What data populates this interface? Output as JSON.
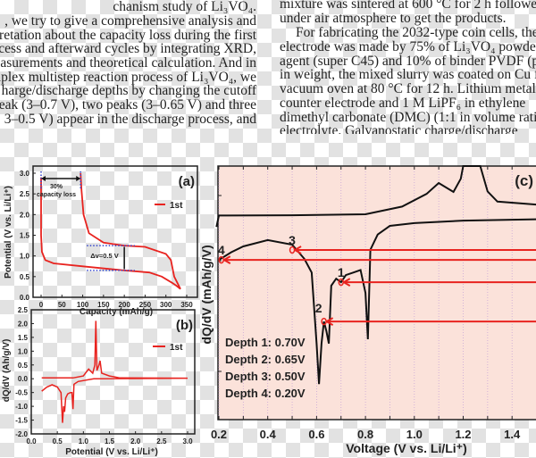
{
  "text": {
    "left_lines": [
      "chanism study of Li₃VO₄.",
      ", we try to give a comprehensive analysis and",
      "rpretation about the capacity loss during the first",
      "e process and afterward cycles by integrating XRD,",
      "measurements and theoretical calculation. And in",
      "nplex multistep reaction process of Li₃VO₄, we",
      "harge/discharge depths by changing the cutoff",
      "e peak (3–0.7 V), two peaks (3–0.65 V) and three",
      ", 3–0.5 V) appear in the discharge process, and"
    ],
    "right_lines": [
      "mixture was sintered at 600 °C for 2 h followed b",
      "under air atmosphere to get the products.",
      "For fabricating the 2032-type coin cells, the Li",
      "electrode was made by 75% of Li₃VO₄ powder, 15",
      "agent (super C45) and 10% of binder PVDF (polyviny",
      "in weight, the mixed slurry was coated on Cu foil a",
      "vacuum oven at 80 °C for 12 h. Lithium metal foils",
      "counter electrode and 1 M LiPF₆ in ethylene",
      "dimethyl carbonate (DMC) (1:1 in volume ratio)",
      "electrolyte.     Galvanostatic     charge/discharge"
    ]
  },
  "chart_data": [
    {
      "panel": "(a)",
      "type": "line",
      "xlabel": "Capacity (mAh/g)",
      "ylabel": "Potential (V vs. Li/Li⁺)",
      "xlim": [
        0,
        350
      ],
      "ylim": [
        0,
        3.0
      ],
      "xticks": [
        "0",
        "50",
        "100",
        "150",
        "200",
        "250",
        "300",
        "350"
      ],
      "yticks": [
        "0.0",
        "0.5",
        "1.0",
        "1.5",
        "2.0",
        "2.5",
        "3.0"
      ],
      "legend": "1st",
      "legend_position": "right",
      "annotations": [
        "30%",
        "capacity loss",
        "Δv=0.5 V"
      ],
      "color": "#e8231f",
      "series": [
        {
          "name": "1st",
          "x": [
            0,
            0,
            2,
            10,
            30,
            100,
            200,
            260,
            290,
            315,
            325,
            335,
            320,
            312,
            300,
            250,
            200,
            150,
            115,
            102,
            97,
            95
          ],
          "y": [
            2.9,
            1.5,
            1.1,
            0.9,
            0.82,
            0.75,
            0.65,
            0.6,
            0.5,
            0.35,
            0.28,
            0.2,
            0.5,
            0.9,
            1.05,
            1.22,
            1.25,
            1.32,
            1.55,
            2.0,
            2.6,
            3.0
          ]
        }
      ]
    },
    {
      "panel": "(b)",
      "type": "line",
      "xlabel": "Potential (V vs. Li/Li⁺)",
      "ylabel": "dQ/dV (Ah/g/V)",
      "xlim": [
        0,
        3.0
      ],
      "ylim": [
        -2.0,
        2.5
      ],
      "xticks": [
        "0.0",
        "0.5",
        "1.0",
        "1.5",
        "2.0",
        "2.5",
        "3.0"
      ],
      "yticks": [
        "-2.0",
        "-1.5",
        "-1.0",
        "-0.5",
        "0.0",
        "0.5",
        "1.0",
        "1.5",
        "2.0",
        "2.5"
      ],
      "legend": "1st",
      "legend_position": "right",
      "color": "#e8231f",
      "series": [
        {
          "name": "1st",
          "x": [
            0.2,
            0.3,
            0.4,
            0.5,
            0.57,
            0.6,
            0.62,
            0.64,
            0.66,
            0.7,
            0.75,
            0.78,
            0.8,
            0.82,
            0.9,
            1.2,
            3.0,
            3.0,
            1.7,
            1.5,
            1.35,
            1.32,
            1.3,
            1.26,
            1.24,
            1.22,
            1.18,
            1.1,
            1.0,
            0.8,
            0.2
          ],
          "y": [
            -0.45,
            -0.3,
            -0.22,
            -0.3,
            -0.5,
            -1.6,
            -1.0,
            -1.2,
            -0.7,
            -0.55,
            -0.5,
            -0.5,
            -1.1,
            -0.2,
            -0.1,
            0,
            0.02,
            0.02,
            0.03,
            0.1,
            0.2,
            0.65,
            0.5,
            0.3,
            2.1,
            0.5,
            0.2,
            0.35,
            0.1,
            0.03,
            0.03
          ]
        }
      ]
    },
    {
      "panel": "(c)",
      "type": "line",
      "xlabel": "Voltage (V vs. Li/Li⁺)",
      "ylabel": "dQ/dV (mAh/g/V)",
      "xlim": [
        0.2,
        1.5
      ],
      "ylim": [
        0,
        100
      ],
      "xticks": [
        "0.2",
        "0.4",
        "0.6",
        "0.8",
        "1.0",
        "1.2",
        "1.4"
      ],
      "background": "#fbe2da",
      "series": [
        {
          "x": [
            0.19,
            0.2,
            0.5,
            0.8,
            0.95,
            1.05,
            1.1,
            1.16,
            1.19,
            1.2,
            1.27,
            1.3,
            1.34,
            1.5
          ],
          "y": [
            76,
            80.5,
            80.6,
            81,
            84,
            89,
            93.3,
            89.8,
            95,
            100,
            100,
            90,
            86,
            84.8
          ]
        },
        {
          "x": [
            0.2,
            0.25,
            0.3,
            0.4,
            0.5,
            0.55,
            0.58,
            0.6,
            0.61,
            0.62,
            0.63,
            0.64,
            0.65,
            0.66,
            0.68,
            0.7,
            0.72,
            0.75,
            0.78,
            0.8,
            0.81,
            0.82,
            0.85,
            0.9,
            1.0,
            1.2,
            1.5
          ],
          "y": [
            63,
            66,
            68.3,
            70.8,
            69,
            63.4,
            58,
            30,
            14,
            30,
            38.7,
            35,
            30,
            52.8,
            55.6,
            54.2,
            57,
            58,
            59,
            50,
            31.7,
            67,
            73,
            76.4,
            77.5,
            78.5,
            79
          ]
        }
      ],
      "markers": [
        {
          "label": "1",
          "x": 0.7,
          "y": 54.2
        },
        {
          "label": "2",
          "x": 0.63,
          "y": 38.7
        },
        {
          "label": "3",
          "x": 0.5,
          "y": 66.9
        },
        {
          "label": "4",
          "x": 0.21,
          "y": 63.0
        }
      ],
      "annotations": [
        "Depth 1: 0.70V",
        "Depth 2: 0.65V",
        "Depth 3: 0.50V",
        "Depth 4: 0.20V"
      ],
      "marker_color": "#e8231f"
    }
  ]
}
